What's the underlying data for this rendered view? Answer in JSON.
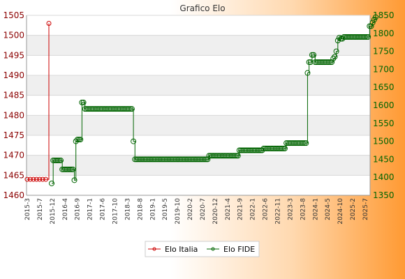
{
  "chart_data": {
    "type": "line",
    "title": "Grafico Elo",
    "legend": {
      "placement": "bottom-center"
    },
    "grid": true,
    "left_axis": {
      "series": "Elo Italia",
      "ylim": [
        1460,
        1505
      ],
      "ticks": [
        1460,
        1465,
        1470,
        1475,
        1480,
        1485,
        1490,
        1495,
        1500,
        1505
      ]
    },
    "right_axis": {
      "series": "Elo FIDE",
      "ylim": [
        1350,
        1850
      ],
      "ticks": [
        1350,
        1400,
        1450,
        1500,
        1550,
        1600,
        1650,
        1700,
        1750,
        1800,
        1850
      ]
    },
    "x_labels": [
      "2015-3",
      "2015-7",
      "2015-12",
      "2016-4",
      "2016-9",
      "2017-1",
      "2017-6",
      "2017-10",
      "2018-3",
      "2018-8",
      "2019-1",
      "2019-5",
      "2019-10",
      "2020-2",
      "2020-7",
      "2020-12",
      "2021-4",
      "2021-9",
      "2022-1",
      "2022-6",
      "2022-11",
      "2023-3",
      "2023-8",
      "2024-1",
      "2024-5",
      "2024-10",
      "2025-2",
      "2025-7"
    ],
    "series": [
      {
        "name": "Elo Italia",
        "axis": "left",
        "color": "#cc0000",
        "values": [
          1464,
          1464,
          1464,
          1464,
          1464,
          1464,
          1464,
          1503
        ]
      },
      {
        "name": "Elo FIDE",
        "axis": "right",
        "color": "#006400",
        "values": [
          1383,
          1447,
          1447,
          1447,
          1447,
          1447,
          1447,
          1422,
          1422,
          1422,
          1422,
          1422,
          1422,
          1422,
          1422,
          1392,
          1500,
          1505,
          1505,
          1505,
          1608,
          1608,
          1590,
          1590,
          1590,
          1590,
          1590,
          1590,
          1590,
          1590,
          1590,
          1590,
          1590,
          1590,
          1590,
          1590,
          1590,
          1590,
          1590,
          1590,
          1590,
          1590,
          1590,
          1590,
          1590,
          1590,
          1590,
          1590,
          1590,
          1590,
          1590,
          1590,
          1590,
          1590,
          1500,
          1450,
          1450,
          1450,
          1450,
          1450,
          1450,
          1450,
          1450,
          1450,
          1450,
          1450,
          1450,
          1450,
          1450,
          1450,
          1450,
          1450,
          1450,
          1450,
          1450,
          1450,
          1450,
          1450,
          1450,
          1450,
          1450,
          1450,
          1450,
          1450,
          1450,
          1450,
          1450,
          1450,
          1450,
          1450,
          1450,
          1450,
          1450,
          1450,
          1450,
          1450,
          1450,
          1450,
          1450,
          1450,
          1450,
          1450,
          1450,
          1450,
          1460,
          1460,
          1460,
          1460,
          1460,
          1460,
          1460,
          1460,
          1460,
          1460,
          1460,
          1460,
          1460,
          1460,
          1460,
          1460,
          1460,
          1460,
          1460,
          1460,
          1475,
          1475,
          1475,
          1475,
          1475,
          1475,
          1475,
          1475,
          1475,
          1475,
          1475,
          1475,
          1475,
          1475,
          1475,
          1475,
          1480,
          1480,
          1480,
          1480,
          1480,
          1480,
          1480,
          1480,
          1480,
          1480,
          1480,
          1480,
          1480,
          1480,
          1480,
          1495,
          1495,
          1495,
          1495,
          1495,
          1495,
          1495,
          1495,
          1495,
          1495,
          1495,
          1495,
          1495,
          1495,
          1690,
          1720,
          1720,
          1740,
          1740,
          1720,
          1720,
          1720,
          1720,
          1720,
          1720,
          1720,
          1720,
          1720,
          1720,
          1720,
          1720,
          1730,
          1735,
          1750,
          1780,
          1788,
          1785,
          1785,
          1790,
          1790,
          1790,
          1790,
          1790,
          1790,
          1790,
          1790,
          1790,
          1790,
          1790,
          1790,
          1790,
          1790,
          1790,
          1790,
          1790,
          1820,
          1820,
          1830,
          1838,
          1845
        ]
      }
    ]
  }
}
